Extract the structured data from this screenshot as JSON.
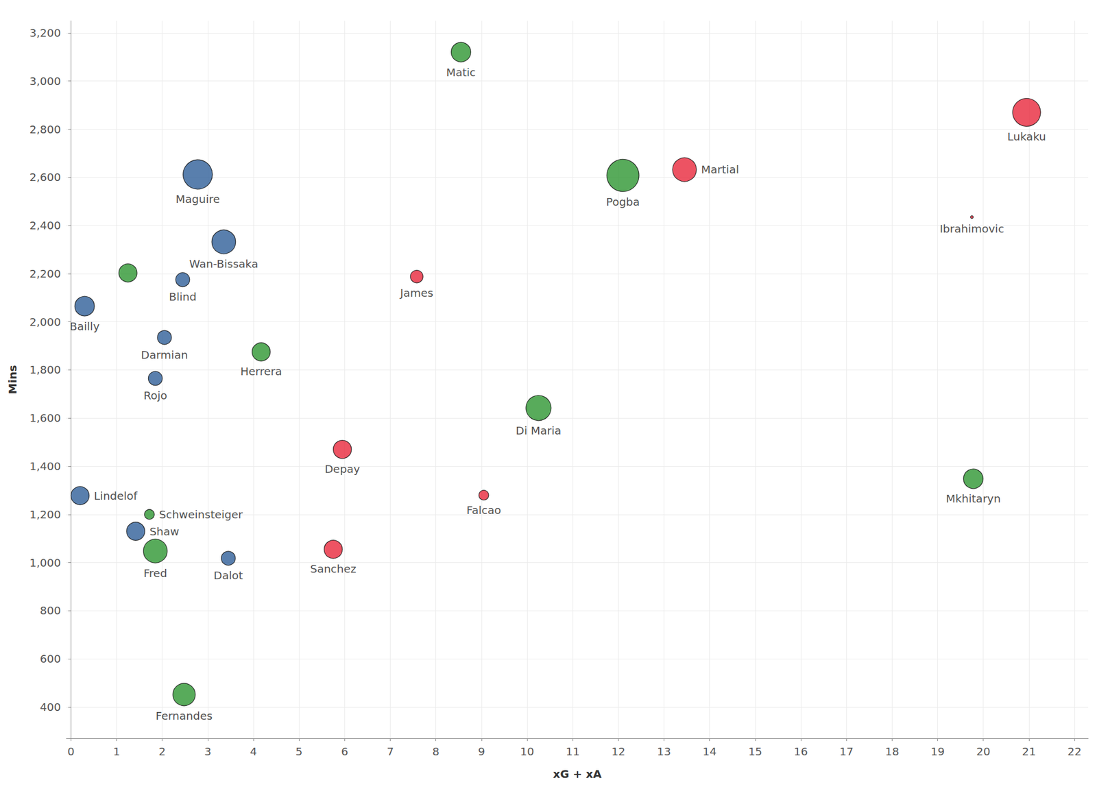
{
  "chart_data": {
    "type": "scatter",
    "x_label": "xG + xA",
    "y_label": "Mins",
    "xlim": [
      -0.1,
      22.3
    ],
    "xticks": [
      0,
      1,
      2,
      3,
      4,
      5,
      6,
      7,
      8,
      9,
      10,
      11,
      12,
      13,
      14,
      15,
      16,
      17,
      18,
      19,
      20,
      21,
      22
    ],
    "ylim": [
      270,
      3250
    ],
    "yticks": [
      400,
      600,
      800,
      1000,
      1200,
      1400,
      1600,
      1800,
      2000,
      2200,
      2400,
      2600,
      2800,
      3000,
      3200
    ],
    "grid": true,
    "names": [
      "Matic",
      "Lukaku",
      "Maguire",
      "Pogba",
      "Martial",
      "Ibrahimovic",
      "Wan-Bissaka",
      null,
      "Blind",
      "James",
      "Bailly",
      "Darmian",
      "Herrera",
      "Rojo",
      "Di Maria",
      "Depay",
      "Mkhitaryn",
      "Lindelof",
      "Falcao",
      "Schweinsteiger",
      "Shaw",
      "Fred",
      "Dalot",
      "Sanchez",
      "Fernandes"
    ],
    "x": [
      8.55,
      20.95,
      2.78,
      12.1,
      13.45,
      19.75,
      3.35,
      1.25,
      2.45,
      7.58,
      0.3,
      2.05,
      4.17,
      1.85,
      10.25,
      5.95,
      19.78,
      0.2,
      9.05,
      1.72,
      1.42,
      1.85,
      3.45,
      5.75,
      2.48
    ],
    "values": [
      3120,
      2870,
      2612,
      2608,
      2632,
      2435,
      2332,
      2203,
      2175,
      2188,
      2065,
      1935,
      1875,
      1765,
      1642,
      1470,
      1348,
      1278,
      1280,
      1200,
      1130,
      1048,
      1018,
      1055,
      452
    ],
    "sizes": [
      28,
      40,
      42,
      46,
      34,
      4,
      34,
      26,
      20,
      18,
      28,
      20,
      26,
      20,
      36,
      26,
      28,
      26,
      14,
      14,
      26,
      34,
      20,
      26,
      32
    ],
    "colors": [
      "#2e9632",
      "#e8283c",
      "#2f5f98",
      "#2e9632",
      "#e8283c",
      "#e8283c",
      "#2f5f98",
      "#2e9632",
      "#2f5f98",
      "#e8283c",
      "#2f5f98",
      "#2f5f98",
      "#2e9632",
      "#2f5f98",
      "#2e9632",
      "#e8283c",
      "#2e9632",
      "#2f5f98",
      "#e8283c",
      "#2e9632",
      "#2f5f98",
      "#2e9632",
      "#2f5f98",
      "#e8283c",
      "#2e9632"
    ],
    "marker": "circle"
  }
}
